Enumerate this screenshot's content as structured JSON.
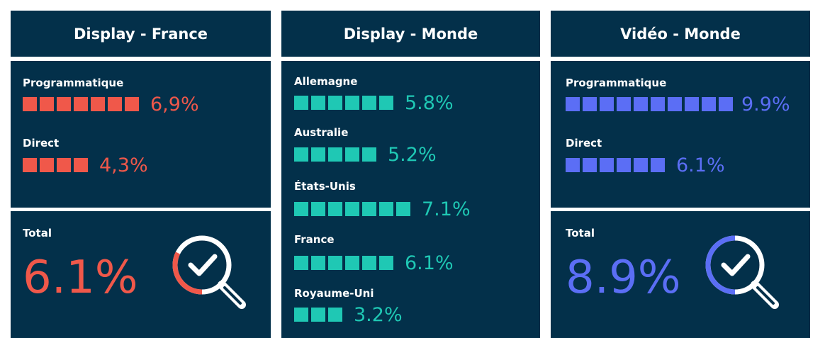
{
  "colors": {
    "background": "#03304a",
    "france": "#f0584a",
    "monde": "#1fc8b4",
    "video": "#5b6ef5",
    "text": "#ffffff"
  },
  "panels": [
    {
      "title": "Display - France",
      "rows": [
        {
          "label": "Programmatique",
          "squares": 7,
          "value_text": "6,9%"
        },
        {
          "label": "Direct",
          "squares": 4,
          "value_text": "4,3%"
        }
      ],
      "total": {
        "label": "Total",
        "value_text": "6.1%",
        "value": 6.1
      },
      "icon": "magnifier-check-icon"
    },
    {
      "title": "Display - Monde",
      "rows": [
        {
          "label": "Allemagne",
          "squares": 6,
          "value_text": "5.8%"
        },
        {
          "label": "Australie",
          "squares": 5,
          "value_text": "5.2%"
        },
        {
          "label": "États-Unis",
          "squares": 7,
          "value_text": "7.1%"
        },
        {
          "label": "France",
          "squares": 6,
          "value_text": "6.1%"
        },
        {
          "label": "Royaume-Uni",
          "squares": 3,
          "value_text": "3.2%"
        }
      ]
    },
    {
      "title": "Vidéo - Monde",
      "rows": [
        {
          "label": "Programmatique",
          "squares": 10,
          "value_text": "9.9%"
        },
        {
          "label": "Direct",
          "squares": 6,
          "value_text": "6.1%"
        }
      ],
      "total": {
        "label": "Total",
        "value_text": "8.9%",
        "value": 8.9
      },
      "icon": "magnifier-check-icon"
    }
  ],
  "chart_data": {
    "type": "table",
    "tables": [
      {
        "title": "Display - France",
        "categories": [
          "Programmatique",
          "Direct",
          "Total"
        ],
        "values": [
          6.9,
          4.3,
          6.1
        ]
      },
      {
        "title": "Display - Monde",
        "categories": [
          "Allemagne",
          "Australie",
          "États-Unis",
          "France",
          "Royaume-Uni"
        ],
        "values": [
          5.8,
          5.2,
          7.1,
          6.1,
          3.2
        ]
      },
      {
        "title": "Vidéo - Monde",
        "categories": [
          "Programmatique",
          "Direct",
          "Total"
        ],
        "values": [
          9.9,
          6.1,
          8.9
        ]
      }
    ]
  }
}
